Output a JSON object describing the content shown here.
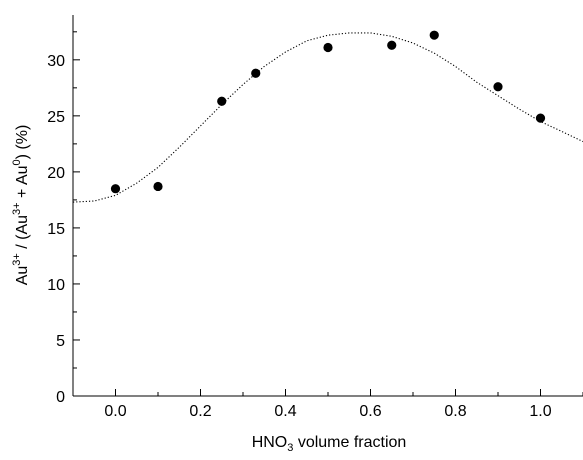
{
  "chart_data": {
    "type": "scatter",
    "title": "",
    "xlabel": {
      "base": "HNO",
      "sub": "3",
      "rest": " volume fraction"
    },
    "ylabel": {
      "parts": [
        {
          "text": "Au",
          "style": "normal"
        },
        {
          "text": "3+",
          "style": "sup"
        },
        {
          "text": " / (Au",
          "style": "normal"
        },
        {
          "text": "3+",
          "style": "sup"
        },
        {
          "text": " + Au",
          "style": "normal"
        },
        {
          "text": "0",
          "style": "sup"
        },
        {
          "text": ") (%)",
          "style": "normal"
        }
      ]
    },
    "xlim": [
      -0.1,
      1.1
    ],
    "ylim": [
      0,
      34
    ],
    "xticks": [
      "0.0",
      "0.2",
      "0.4",
      "0.6",
      "0.8",
      "1.0"
    ],
    "xtick_values": [
      0.0,
      0.2,
      0.4,
      0.6,
      0.8,
      1.0
    ],
    "yticks": [
      "0",
      "5",
      "10",
      "15",
      "20",
      "25",
      "30"
    ],
    "ytick_values": [
      0,
      5,
      10,
      15,
      20,
      25,
      30
    ],
    "grid": false,
    "legend": "none",
    "series": [
      {
        "kind": "points",
        "marker": "filled-circle",
        "color": "#000000",
        "x": [
          0.0,
          0.1,
          0.25,
          0.33,
          0.5,
          0.65,
          0.75,
          0.9,
          1.0
        ],
        "y": [
          18.5,
          18.7,
          26.3,
          28.8,
          31.1,
          31.3,
          32.2,
          27.6,
          24.8
        ]
      },
      {
        "kind": "fit",
        "style": "dotted",
        "color": "#000000",
        "x": [
          -0.1,
          -0.05,
          0.0,
          0.05,
          0.1,
          0.15,
          0.2,
          0.25,
          0.3,
          0.35,
          0.4,
          0.45,
          0.5,
          0.55,
          0.6,
          0.65,
          0.7,
          0.75,
          0.8,
          0.85,
          0.9,
          0.95,
          1.0,
          1.05,
          1.1
        ],
        "y": [
          17.3,
          17.4,
          17.9,
          19.0,
          20.4,
          22.2,
          24.1,
          26.0,
          27.8,
          29.4,
          30.7,
          31.7,
          32.2,
          32.4,
          32.4,
          32.1,
          31.5,
          30.6,
          29.4,
          28.0,
          26.8,
          25.6,
          24.5,
          23.6,
          22.7
        ]
      }
    ]
  }
}
